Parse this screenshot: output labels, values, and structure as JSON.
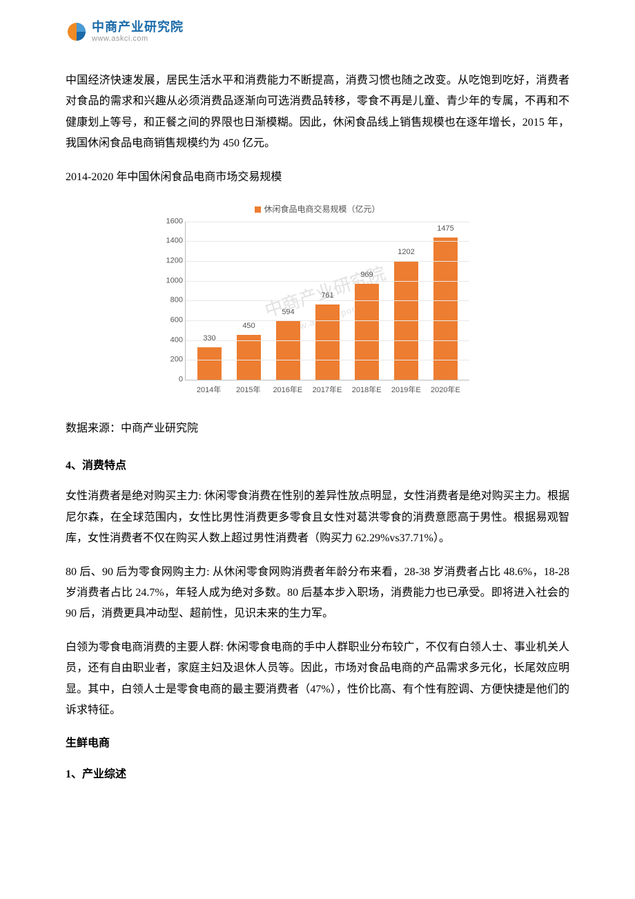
{
  "logo": {
    "cn": "中商产业研究院",
    "url": "www.askci.com",
    "orange": "#f08a24",
    "blue": "#1a6aa8"
  },
  "para1": "中国经济快速发展，居民生活水平和消费能力不断提高，消费习惯也随之改变。从吃饱到吃好，消费者对食品的需求和兴趣从必须消费品逐渐向可选消费品转移，零食不再是儿童、青少年的专属，不再和不健康划上等号，和正餐之间的界限也日渐模糊。因此，休闲食品线上销售规模也在逐年增长，2015 年，我国休闲食品电商销售规模约为 450 亿元。",
  "chart_title": "2014-2020 年中国休闲食品电商市场交易规模",
  "chart": {
    "type": "bar",
    "legend": "休闲食品电商交易规模（亿元）",
    "categories": [
      "2014年",
      "2015年",
      "2016年E",
      "2017年E",
      "2018年E",
      "2019年E",
      "2020年E"
    ],
    "values": [
      330,
      450,
      594,
      761,
      969,
      1202,
      1475
    ],
    "bar_color": "#ed7d31",
    "ylim": [
      0,
      1600
    ],
    "ytick_step": 200,
    "grid_color": "#e8e8e8",
    "axis_color": "#bbbbbb",
    "label_fontsize": 11,
    "label_color": "#555555",
    "legend_fontsize": 12,
    "bar_width": 0.6,
    "background_color": "#ffffff",
    "watermark_main": "中商产业研究院",
    "watermark_sub": "www.askcireport.com",
    "watermark_color": "rgba(120,120,120,0.22)"
  },
  "source": "数据来源：中商产业研究院",
  "sec4_head": "4、消费特点",
  "p4a": "女性消费者是绝对购买主力: 休闲零食消费在性别的差异性放点明显，女性消费者是绝对购买主力。根据尼尔森，在全球范围内，女性比男性消费更多零食且女性对葛洪零食的消费意愿高于男性。根据易观智库，女性消费者不仅在购买人数上超过男性消费者（购买力 62.29%vs37.71%）。",
  "p4b": "80 后、90 后为零食网购主力: 从休闲零食网购消费者年龄分布来看，28-38 岁消费者占比 48.6%，18-28 岁消费者占比 24.7%，年轻人成为绝对多数。80 后基本步入职场，消费能力也已承受。即将进入社会的 90 后，消费更具冲动型、超前性，见识未来的生力军。",
  "p4c": "白领为零食电商消费的主要人群: 休闲零食电商的手中人群职业分布较广，不仅有白领人士、事业机关人员，还有自由职业者，家庭主妇及退休人员等。因此，市场对食品电商的产品需求多元化，长尾效应明显。其中，白领人士是零食电商的最主要消费者（47%），性价比高、有个性有腔调、方便快捷是他们的诉求特征。",
  "sec_fresh": "生鲜电商",
  "sec1_head": "1、产业综述"
}
